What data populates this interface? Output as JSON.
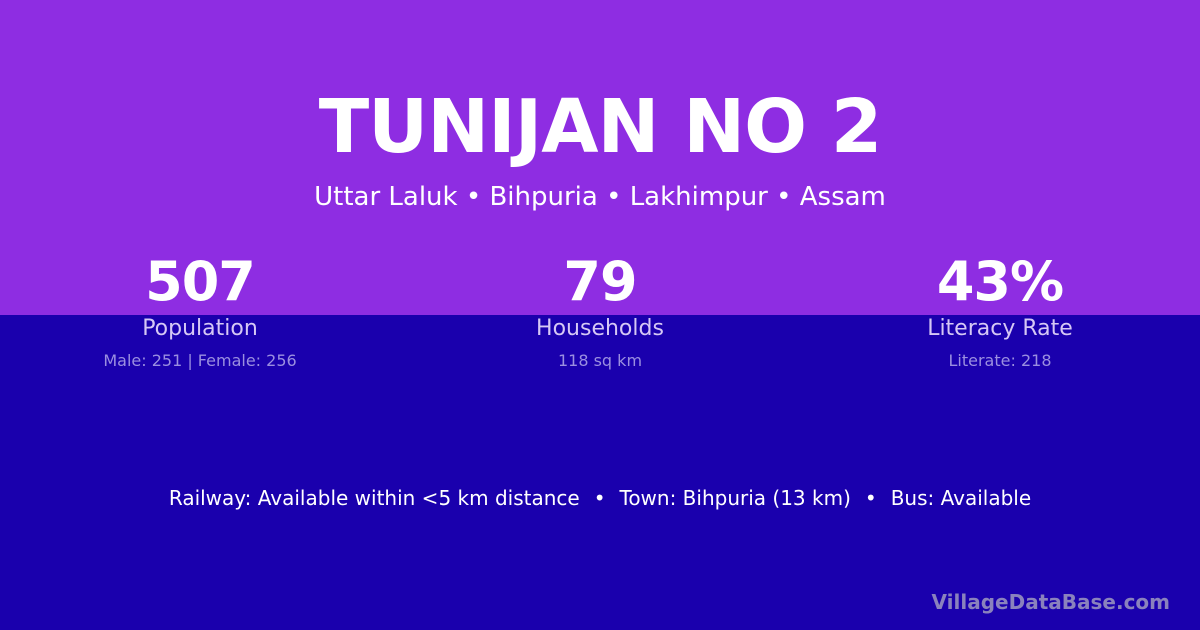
{
  "colors": {
    "top": "#8e2de2",
    "bottom": "#1a00ad"
  },
  "title": "TUNIJAN NO 2",
  "subtitle": "Uttar Laluk • Bihpuria • Lakhimpur • Assam",
  "stats": [
    {
      "value": "507",
      "label": "Population",
      "detail": "Male: 251 | Female: 256"
    },
    {
      "value": "79",
      "label": "Households",
      "detail": "118 sq km"
    },
    {
      "value": "43%",
      "label": "Literacy Rate",
      "detail": "Literate: 218"
    }
  ],
  "info": [
    "Railway: Available within <5 km distance",
    "Town: Bihpuria (13 km)",
    "Bus: Available"
  ],
  "info_separator": "•",
  "brand": "VillageDataBase.com"
}
